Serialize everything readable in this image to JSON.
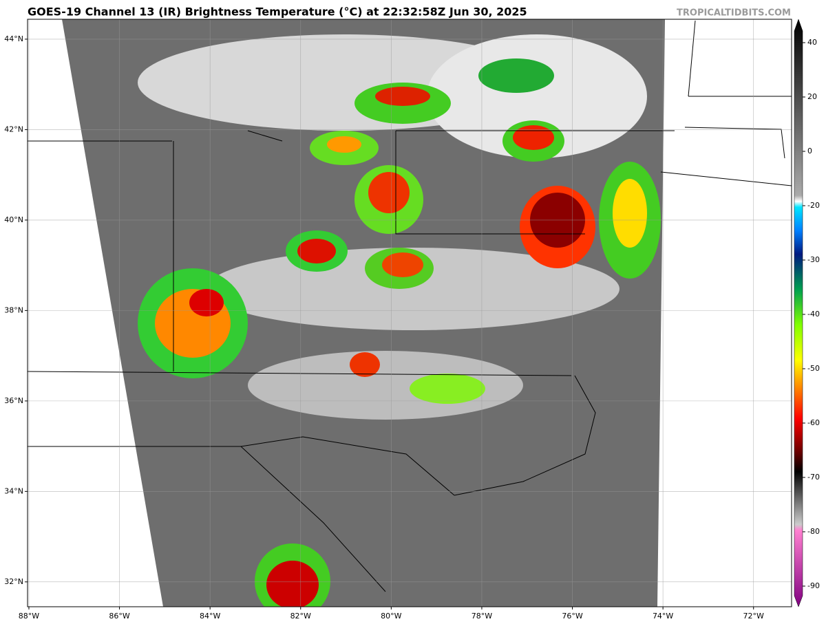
{
  "header": {
    "title": "GOES-19 Channel 13 (IR) Brightness Temperature (°C) at 22:32:58Z Jun 30, 2025",
    "watermark": "TROPICALTIDBITS.COM"
  },
  "map": {
    "xlim": [
      -88.03,
      -71.16
    ],
    "ylim": [
      31.45,
      44.44
    ],
    "xticks": [
      {
        "value": -88,
        "label": "88°W"
      },
      {
        "value": -86,
        "label": "86°W"
      },
      {
        "value": -84,
        "label": "84°W"
      },
      {
        "value": -82,
        "label": "82°W"
      },
      {
        "value": -80,
        "label": "80°W"
      },
      {
        "value": -78,
        "label": "78°W"
      },
      {
        "value": -76,
        "label": "76°W"
      },
      {
        "value": -74,
        "label": "74°W"
      },
      {
        "value": -72,
        "label": "72°W"
      }
    ],
    "yticks": [
      {
        "value": 32,
        "label": "32°N"
      },
      {
        "value": 34,
        "label": "34°N"
      },
      {
        "value": 36,
        "label": "36°N"
      },
      {
        "value": 38,
        "label": "38°N"
      },
      {
        "value": 40,
        "label": "40°N"
      },
      {
        "value": 42,
        "label": "42°N"
      },
      {
        "value": 44,
        "label": "44°N"
      }
    ]
  },
  "colorbar": {
    "ticks": [
      40,
      20,
      0,
      -20,
      -30,
      -40,
      -50,
      -60,
      -70,
      -80,
      -90
    ]
  }
}
